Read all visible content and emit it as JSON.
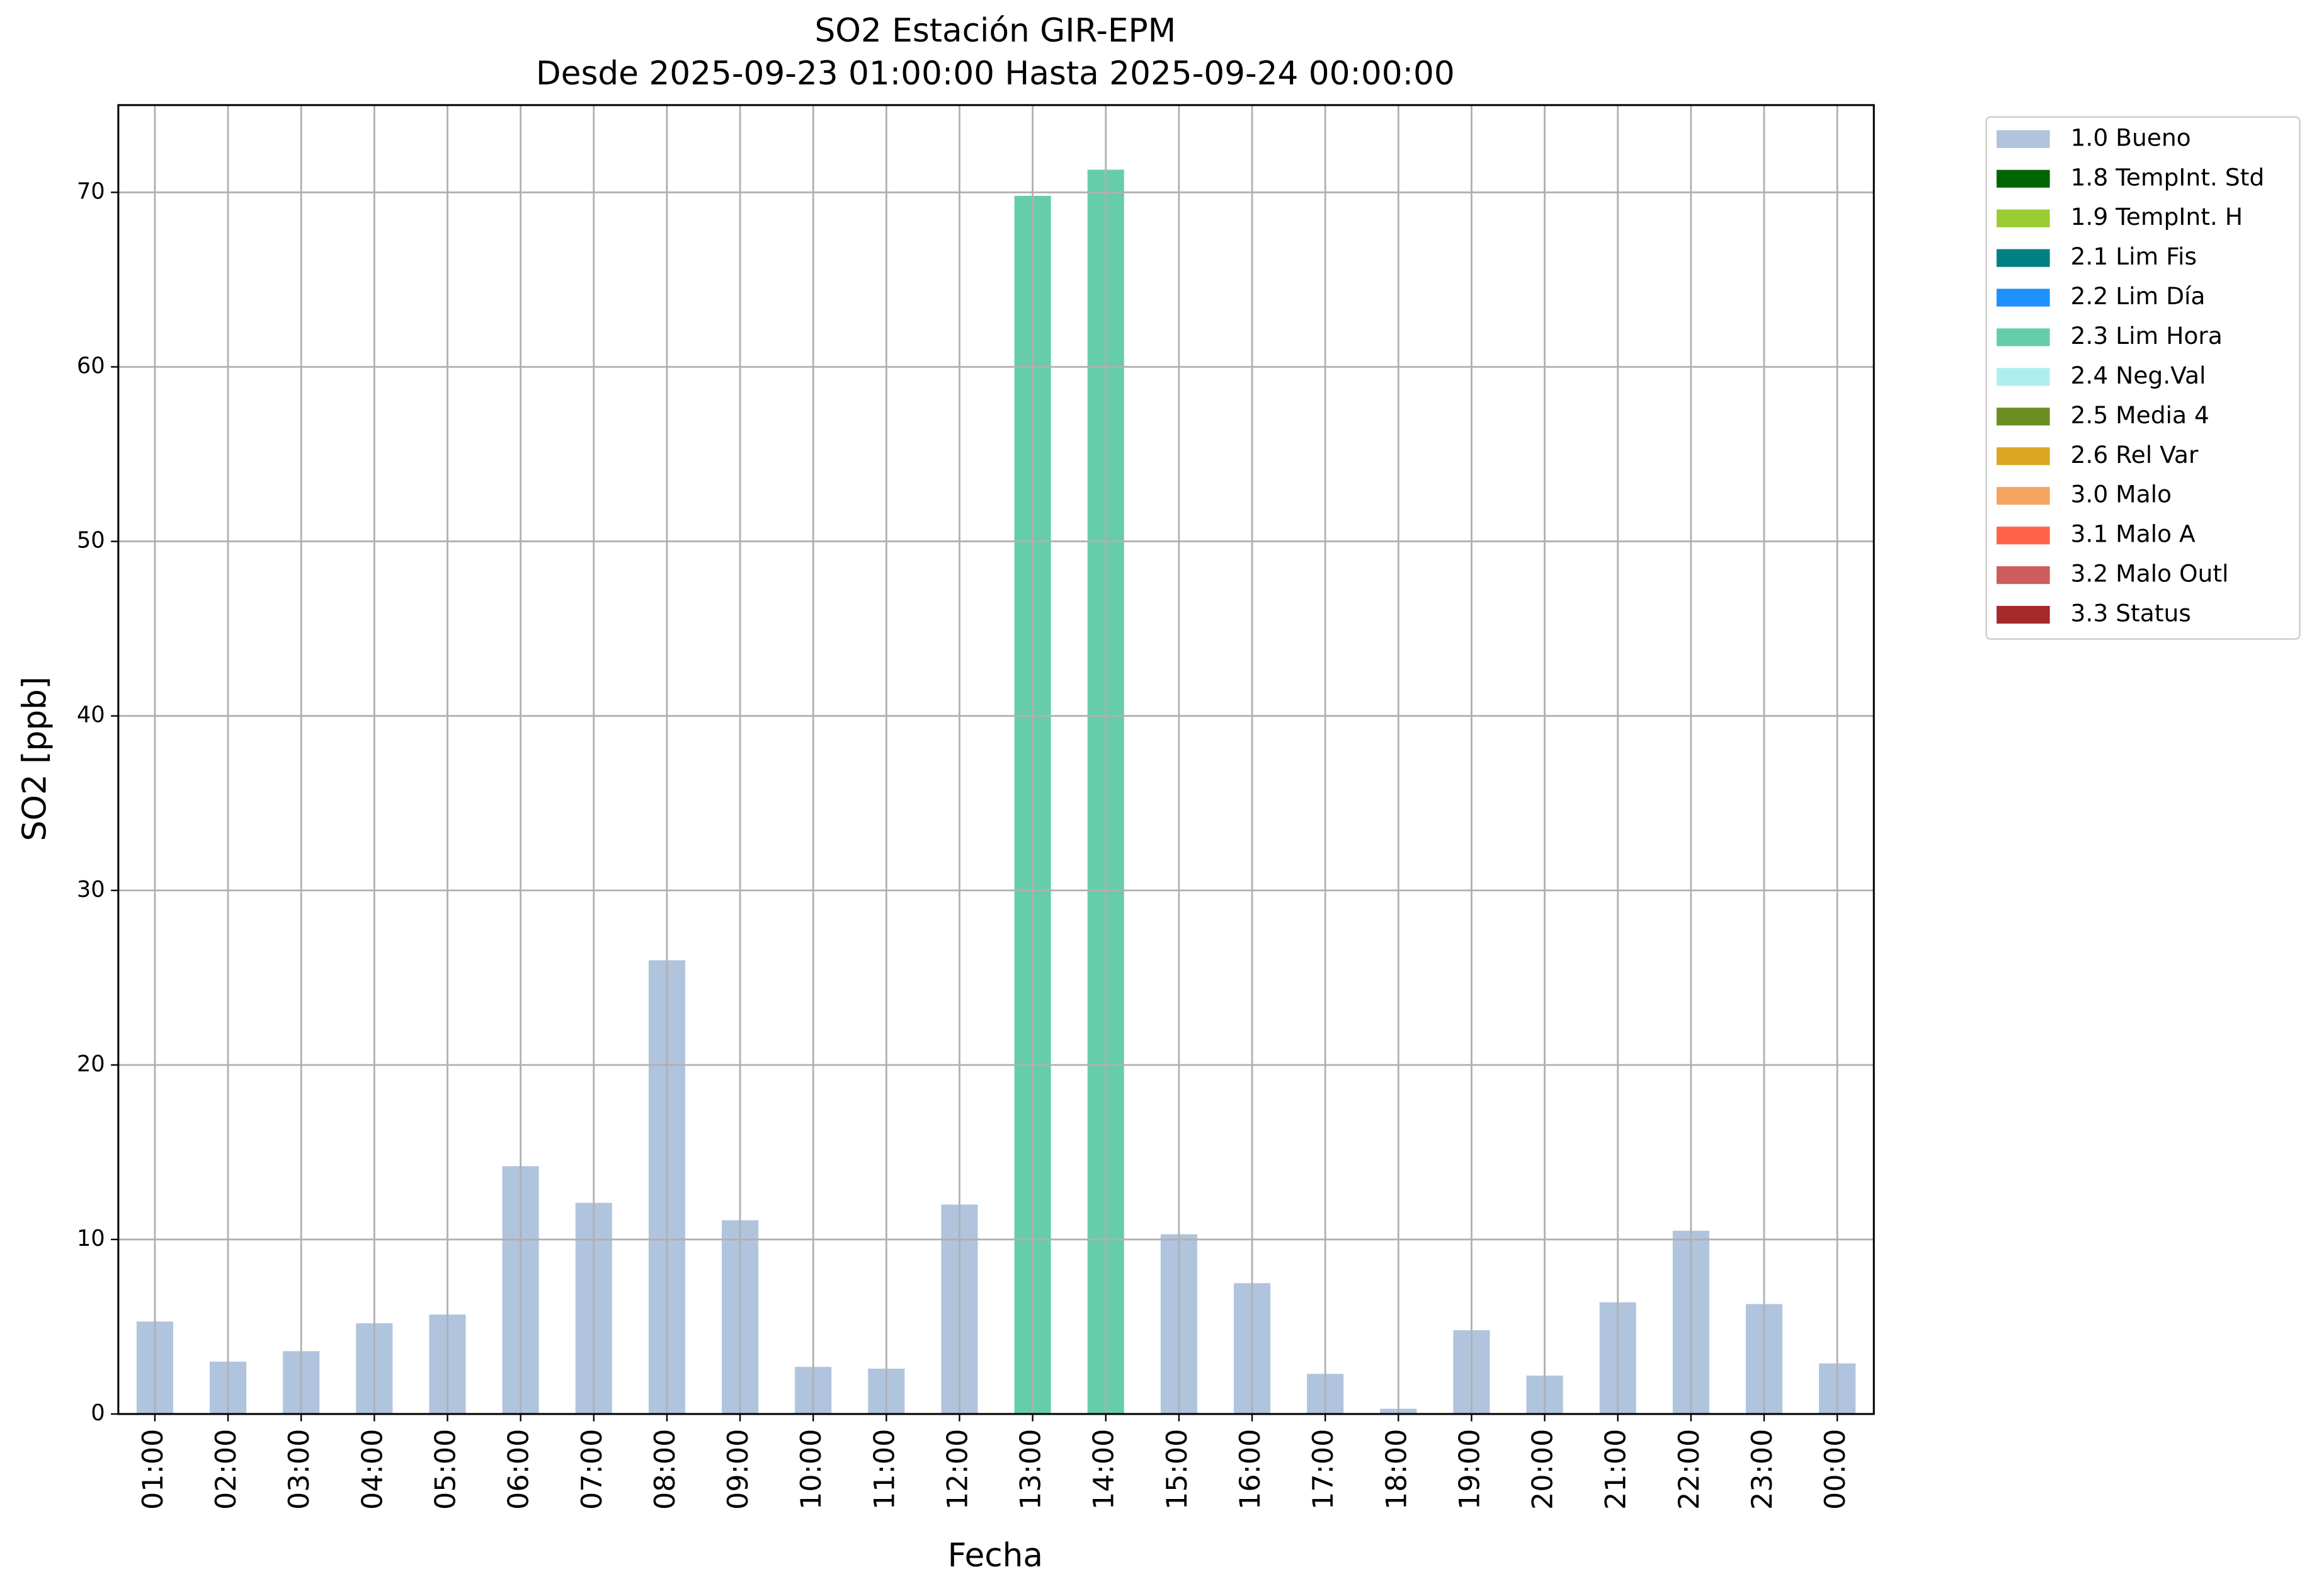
{
  "chart_data": {
    "type": "stacked-bar",
    "title": "SO2 Estación GIR-EPM",
    "subtitle": "Desde 2025-09-23 01:00:00 Hasta 2025-09-24 00:00:00",
    "x_label": "Fecha",
    "y_label": "SO2 [ppb]",
    "categories": [
      "01:00",
      "02:00",
      "03:00",
      "04:00",
      "05:00",
      "06:00",
      "07:00",
      "08:00",
      "09:00",
      "10:00",
      "11:00",
      "12:00",
      "13:00",
      "14:00",
      "15:00",
      "16:00",
      "17:00",
      "18:00",
      "19:00",
      "20:00",
      "21:00",
      "22:00",
      "23:00",
      "00:00"
    ],
    "series": [
      {
        "name": "1.0 Bueno",
        "color": "#b0c4de",
        "values": [
          5.3,
          3.0,
          3.6,
          5.2,
          5.7,
          14.2,
          12.1,
          26.0,
          11.1,
          2.7,
          2.6,
          12.0,
          null,
          null,
          10.3,
          7.5,
          2.3,
          0.3,
          4.8,
          2.2,
          6.4,
          10.5,
          6.3,
          2.9
        ]
      },
      {
        "name": "1.8 TempInt. Std",
        "color": "#006400",
        "values": [
          null,
          null,
          null,
          null,
          null,
          null,
          null,
          null,
          null,
          null,
          null,
          null,
          null,
          null,
          null,
          null,
          null,
          null,
          null,
          null,
          null,
          null,
          null,
          null
        ]
      },
      {
        "name": "1.9 TempInt. H",
        "color": "#9acd32",
        "values": [
          null,
          null,
          null,
          null,
          null,
          null,
          null,
          null,
          null,
          null,
          null,
          null,
          null,
          null,
          null,
          null,
          null,
          null,
          null,
          null,
          null,
          null,
          null,
          null
        ]
      },
      {
        "name": "2.1 Lim Fis",
        "color": "#008080",
        "values": [
          null,
          null,
          null,
          null,
          null,
          null,
          null,
          null,
          null,
          null,
          null,
          null,
          null,
          null,
          null,
          null,
          null,
          null,
          null,
          null,
          null,
          null,
          null,
          null
        ]
      },
      {
        "name": "2.2 Lim Día",
        "color": "#1e90ff",
        "values": [
          null,
          null,
          null,
          null,
          null,
          null,
          null,
          null,
          null,
          null,
          null,
          null,
          null,
          null,
          null,
          null,
          null,
          null,
          null,
          null,
          null,
          null,
          null,
          null
        ]
      },
      {
        "name": "2.3 Lim Hora",
        "color": "#66cdaa",
        "values": [
          null,
          null,
          null,
          null,
          null,
          null,
          null,
          null,
          null,
          null,
          null,
          null,
          69.8,
          71.3,
          null,
          null,
          null,
          null,
          null,
          null,
          null,
          null,
          null,
          null
        ]
      },
      {
        "name": "2.4 Neg.Val",
        "color": "#afeeee",
        "values": [
          null,
          null,
          null,
          null,
          null,
          null,
          null,
          null,
          null,
          null,
          null,
          null,
          null,
          null,
          null,
          null,
          null,
          null,
          null,
          null,
          null,
          null,
          null,
          null
        ]
      },
      {
        "name": "2.5 Media 4",
        "color": "#6b8e23",
        "values": [
          null,
          null,
          null,
          null,
          null,
          null,
          null,
          null,
          null,
          null,
          null,
          null,
          null,
          null,
          null,
          null,
          null,
          null,
          null,
          null,
          null,
          null,
          null,
          null
        ]
      },
      {
        "name": "2.6 Rel Var",
        "color": "#daa520",
        "values": [
          null,
          null,
          null,
          null,
          null,
          null,
          null,
          null,
          null,
          null,
          null,
          null,
          null,
          null,
          null,
          null,
          null,
          null,
          null,
          null,
          null,
          null,
          null,
          null
        ]
      },
      {
        "name": "3.0 Malo",
        "color": "#f4a460",
        "values": [
          null,
          null,
          null,
          null,
          null,
          null,
          null,
          null,
          null,
          null,
          null,
          null,
          null,
          null,
          null,
          null,
          null,
          null,
          null,
          null,
          null,
          null,
          null,
          null
        ]
      },
      {
        "name": "3.1 Malo A",
        "color": "#ff6347",
        "values": [
          null,
          null,
          null,
          null,
          null,
          null,
          null,
          null,
          null,
          null,
          null,
          null,
          null,
          null,
          null,
          null,
          null,
          null,
          null,
          null,
          null,
          null,
          null,
          null
        ]
      },
      {
        "name": "3.2 Malo Outl",
        "color": "#cd5c5c",
        "values": [
          null,
          null,
          null,
          null,
          null,
          null,
          null,
          null,
          null,
          null,
          null,
          null,
          null,
          null,
          null,
          null,
          null,
          null,
          null,
          null,
          null,
          null,
          null,
          null
        ]
      },
      {
        "name": "3.3 Status",
        "color": "#a52a2a",
        "values": [
          null,
          null,
          null,
          null,
          null,
          null,
          null,
          null,
          null,
          null,
          null,
          null,
          null,
          null,
          null,
          null,
          null,
          null,
          null,
          null,
          null,
          null,
          null,
          null
        ]
      }
    ],
    "ylim": [
      0,
      75
    ],
    "yticks": [
      0,
      10,
      20,
      30,
      40,
      50,
      60,
      70
    ],
    "grid": true,
    "legend": "outside-right"
  }
}
